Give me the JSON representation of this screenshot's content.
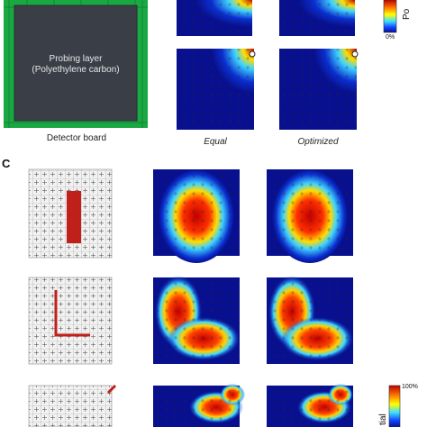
{
  "detector": {
    "layer_line1": "Probing layer",
    "layer_line2": "(Polyethylene carbon)",
    "caption": "Detector board"
  },
  "columns": {
    "equal": "Equal",
    "optimized": "Optimized"
  },
  "panel_c_letter": "C",
  "colorbar_top": {
    "label_fragment": "Po",
    "min_label": "0%"
  },
  "colorbar_bottom": {
    "max_label": "100%",
    "label_fragment": "tial"
  },
  "colors": {
    "board_green": "#1aa843",
    "layer_dark": "#3a3f47",
    "heat_low": "#08108f",
    "heat_high": "#c00000",
    "target_red": "#c0201a"
  },
  "shapes": [
    "vertical-bar",
    "l-shape",
    "diagonal-segment"
  ]
}
